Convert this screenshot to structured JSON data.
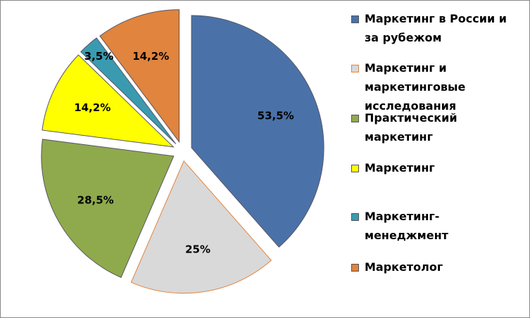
{
  "chart_data": {
    "type": "pie",
    "categories": [
      "Маркетинг в России и за рубежом",
      "Маркетинг и маркетинговые исследования",
      "Практический маркетинг",
      "Маркетинг",
      "Маркетинг-менеджмент",
      "Маркетолог"
    ],
    "values": [
      53.5,
      25,
      28.5,
      14.2,
      3.5,
      14.2
    ],
    "value_labels": [
      "53,5%",
      "25%",
      "28,5%",
      "14,2%",
      "3,5%",
      "14,2%"
    ],
    "colors": [
      "#4a72a8",
      "#d9d9d9",
      "#8faa4c",
      "#ffff00",
      "#3a9bb0",
      "#e0843e"
    ],
    "legend": "right"
  }
}
